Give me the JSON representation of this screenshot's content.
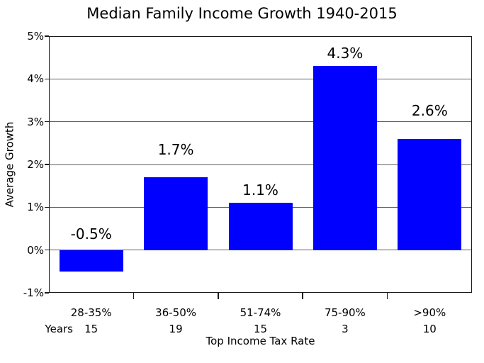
{
  "chart_data": {
    "type": "bar",
    "title": "Median Family Income Growth 1940-2015",
    "xlabel": "Top Income Tax Rate",
    "ylabel": "Average Growth",
    "categories": [
      "28-35%",
      "36-50%",
      "51-74%",
      "75-90%",
      ">90%"
    ],
    "values": [
      -0.5,
      1.7,
      1.1,
      4.3,
      2.6
    ],
    "bar_labels": [
      "-0.5%",
      "1.7%",
      "1.1%",
      "4.3%",
      "2.6%"
    ],
    "years_label": "Years",
    "years": [
      "15",
      "19",
      "15",
      "3",
      "10"
    ],
    "ylim": [
      -1,
      5
    ],
    "yticks": [
      5,
      4,
      3,
      2,
      1,
      0,
      -1
    ],
    "ytick_labels": [
      "5%",
      "4%",
      "3%",
      "2%",
      "1%",
      "0%",
      "-1%"
    ],
    "grid": true,
    "legend_position": "none",
    "bar_color": "#0000ff",
    "grid_color": "#606060",
    "axis_color": "#1a1a1a",
    "background": "#ffffff"
  }
}
